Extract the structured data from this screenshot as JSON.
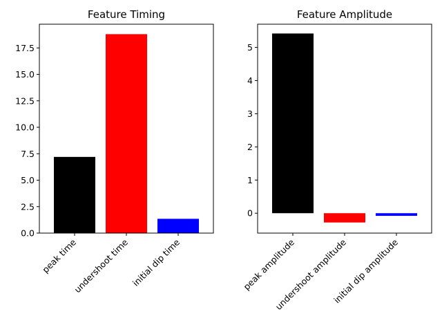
{
  "chart_data": [
    {
      "type": "bar",
      "title": "Feature Timing",
      "categories": [
        "peak time",
        "undershoot time",
        "initial dip time"
      ],
      "values": [
        7.2,
        18.8,
        1.35
      ],
      "colors": [
        "#000000",
        "#ff0000",
        "#0000ff"
      ],
      "ylim": [
        0,
        19.74
      ],
      "yticks": [
        0.0,
        2.5,
        5.0,
        7.5,
        10.0,
        12.5,
        15.0,
        17.5
      ],
      "ytick_labels": [
        "0.0",
        "2.5",
        "5.0",
        "7.5",
        "10.0",
        "12.5",
        "15.0",
        "17.5"
      ],
      "xlabel": "",
      "ylabel": "",
      "grid": false
    },
    {
      "type": "bar",
      "title": "Feature Amplitude",
      "categories": [
        "peak amplitude",
        "undershoot amplitude",
        "initial dip amplitude"
      ],
      "values": [
        5.42,
        -0.28,
        -0.08
      ],
      "colors": [
        "#000000",
        "#ff0000",
        "#0000ff"
      ],
      "ylim": [
        -0.6,
        5.7
      ],
      "yticks": [
        0,
        1,
        2,
        3,
        4,
        5
      ],
      "ytick_labels": [
        "0",
        "1",
        "2",
        "3",
        "4",
        "5"
      ],
      "xlabel": "",
      "ylabel": "",
      "grid": false
    }
  ]
}
